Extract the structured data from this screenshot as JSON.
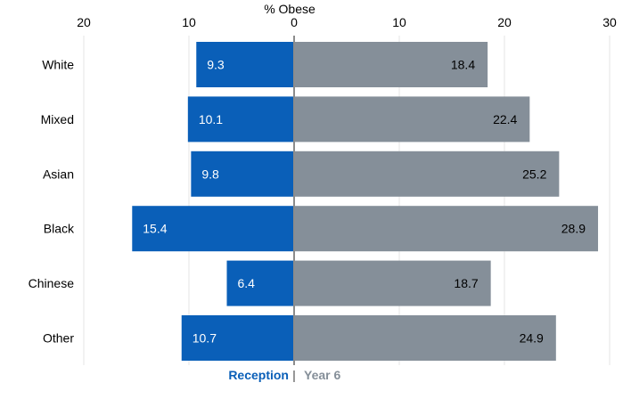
{
  "chart_data": {
    "type": "bar",
    "orientation": "horizontal",
    "layout": "diverging",
    "title": "% Obese",
    "categories": [
      "White",
      "Mixed",
      "Asian",
      "Black",
      "Chinese",
      "Other"
    ],
    "series": [
      {
        "name": "Reception",
        "values": [
          9.3,
          10.1,
          9.8,
          15.4,
          6.4,
          10.7
        ],
        "color": "#0a5fb8",
        "direction": "left"
      },
      {
        "name": "Year 6",
        "values": [
          18.4,
          22.4,
          25.2,
          28.9,
          18.7,
          24.9
        ],
        "color": "#858f99",
        "direction": "right"
      }
    ],
    "value_labels": {
      "Reception": [
        "9.3",
        "10.1",
        "9.8",
        "15.4",
        "6.4",
        "10.7"
      ],
      "Year 6": [
        "18.4",
        "22.4",
        "25.2",
        "28.9",
        "18.7",
        "24.9"
      ]
    },
    "xlim": [
      -20,
      30
    ],
    "ticks": [
      -20,
      -10,
      0,
      10,
      20,
      30
    ],
    "tick_labels": [
      "20",
      "10",
      "0",
      "10",
      "20",
      "30"
    ],
    "grid": true,
    "legend_position": "bottom-center",
    "legend_separator": "|",
    "colors": {
      "grid": "#e4e4e4",
      "zero_line": "#8c8c8c",
      "text": "#000000"
    }
  }
}
